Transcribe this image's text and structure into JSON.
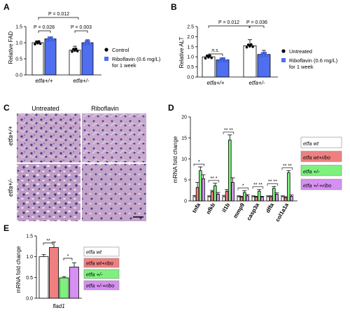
{
  "panels": {
    "A": {
      "label": "A",
      "chart_data": {
        "type": "bar",
        "ylabel": "Relative FAD",
        "ylim": [
          0,
          1.5
        ],
        "yticks": [
          0,
          0.5,
          1.0,
          1.5
        ],
        "categories": [
          "etfa+/+",
          "etfa+/-"
        ],
        "series": [
          {
            "name": "Control",
            "values": [
              1.0,
              0.77
            ],
            "errors": [
              0.06,
              0.12
            ],
            "color": "#ffffff"
          },
          {
            "name": "Riboflavin (0.6 mg/L) for 1 week",
            "values": [
              1.12,
              1.0
            ],
            "errors": [
              0.05,
              0.09
            ],
            "color": "#4f6ff0"
          }
        ],
        "pvalues": [
          {
            "text": "P = 0.012",
            "between": "Control etfa+/+ vs Control etfa+/-"
          },
          {
            "text": "P = 0.028",
            "between": "etfa+/+ Control vs Riboflavin"
          },
          {
            "text": "P = 0.003",
            "between": "etfa+/- Control vs Riboflavin"
          }
        ]
      }
    },
    "B": {
      "label": "B",
      "chart_data": {
        "type": "bar",
        "ylabel": "Relative ALT",
        "ylim": [
          0,
          2.5
        ],
        "yticks": [
          0.0,
          0.5,
          1.0,
          1.5,
          2.0,
          2.5
        ],
        "categories": [
          "etfa+/+",
          "etfa+/-"
        ],
        "series": [
          {
            "name": "Untreated",
            "values": [
              1.0,
              1.55
            ],
            "errors": [
              0.1,
              0.3
            ],
            "color": "#ffffff"
          },
          {
            "name": "Riboflavin (0.6 mg/L) for 1 week",
            "values": [
              0.85,
              1.12
            ],
            "errors": [
              0.1,
              0.2
            ],
            "color": "#4f6ff0"
          }
        ],
        "pvalues": [
          {
            "text": "P = 0.012",
            "between": "Untreated etfa+/+ vs Untreated etfa+/-"
          },
          {
            "text": "n.s.",
            "between": "etfa+/+ Untreated vs Riboflavin"
          },
          {
            "text": "P = 0.036",
            "between": "etfa+/- Untreated vs Riboflavin"
          }
        ]
      }
    },
    "C": {
      "label": "C",
      "col_headers": [
        "Untreated",
        "Riboflavin"
      ],
      "row_headers": [
        "etfa+/+",
        "etfa+/-"
      ]
    },
    "D": {
      "label": "D",
      "chart_data": {
        "type": "bar",
        "ylabel": "mRNA fold change",
        "ylim": [
          0,
          20
        ],
        "yticks": [
          0,
          5,
          10,
          15,
          20
        ],
        "categories": [
          "tnfa",
          "nfkb",
          "il1b",
          "mmp9",
          "casp3a",
          "dffa",
          "col1a1a"
        ],
        "series": [
          {
            "name": "etfa wt",
            "values": [
              1.0,
              1.0,
              1.0,
              1.0,
              1.0,
              1.0,
              1.0
            ],
            "errors": [
              0.3,
              0.2,
              0.3,
              0.2,
              0.2,
              0.2,
              0.2
            ],
            "color": "#ffffff"
          },
          {
            "name": "etfa wt+ribo",
            "values": [
              3.2,
              2.2,
              2.3,
              0.9,
              0.9,
              1.0,
              0.8
            ],
            "errors": [
              1.2,
              0.3,
              0.4,
              0.2,
              0.2,
              0.2,
              0.2
            ],
            "color": "#f08080"
          },
          {
            "name": "etfa +/-",
            "values": [
              7.2,
              3.6,
              14.5,
              2.0,
              2.3,
              3.0,
              6.7
            ],
            "errors": [
              0.9,
              0.6,
              1.2,
              0.4,
              0.4,
              0.4,
              0.5
            ],
            "color": "#7ef07e"
          },
          {
            "name": "etfa +/-+ribo",
            "values": [
              5.3,
              1.6,
              4.4,
              1.2,
              0.9,
              1.6,
              1.1
            ],
            "errors": [
              0.9,
              0.4,
              1.1,
              0.3,
              0.2,
              0.3,
              0.3
            ],
            "color": "#d68ff2"
          }
        ],
        "annotations": [
          "*",
          "** *",
          "** **",
          "*",
          "** **",
          "** **",
          "** **"
        ]
      }
    },
    "E": {
      "label": "E",
      "chart_data": {
        "type": "bar",
        "ylabel": "mRNA fold change",
        "ylim": [
          0,
          1.5
        ],
        "yticks": [
          0.0,
          0.5,
          1.0,
          1.5
        ],
        "categories": [
          "flad1"
        ],
        "series": [
          {
            "name": "etfa wt",
            "values": [
              1.0
            ],
            "errors": [
              0.05
            ],
            "color": "#ffffff"
          },
          {
            "name": "etfa wt+ribo",
            "values": [
              1.22
            ],
            "errors": [
              0.13
            ],
            "color": "#f08080"
          },
          {
            "name": "etfa +/-",
            "values": [
              0.49
            ],
            "errors": [
              0.03
            ],
            "color": "#7ef07e"
          },
          {
            "name": "etfa +/-+ribo",
            "values": [
              0.75
            ],
            "errors": [
              0.1
            ],
            "color": "#d68ff2"
          }
        ],
        "annotations": [
          "**",
          "*"
        ]
      }
    }
  }
}
